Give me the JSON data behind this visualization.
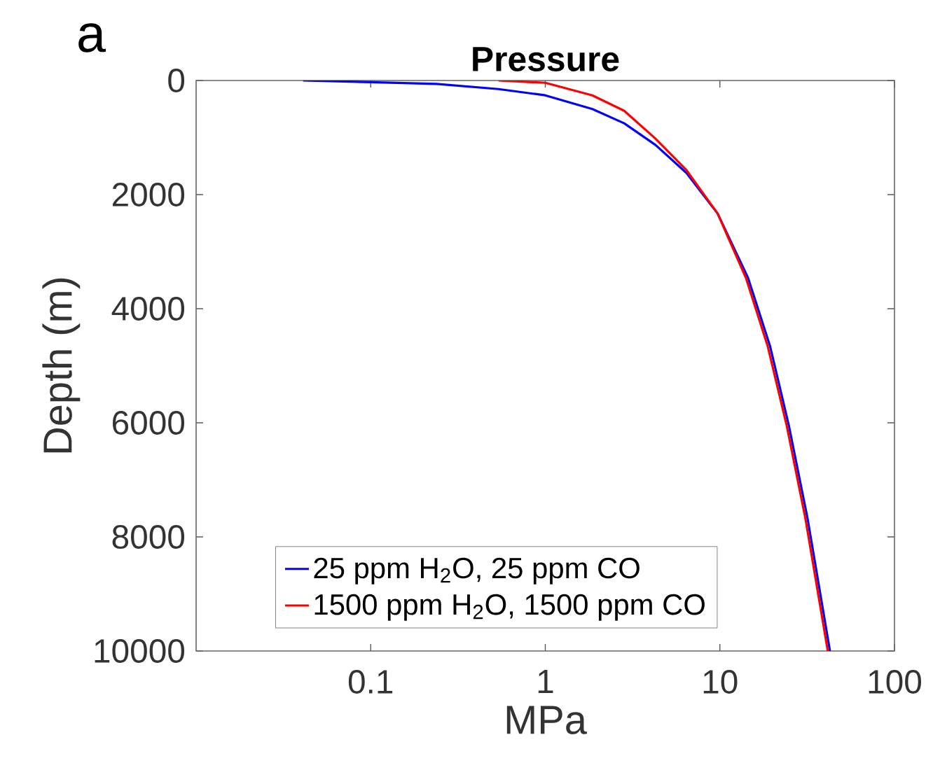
{
  "chart_data": {
    "type": "line",
    "title": "Pressure",
    "xlabel": "MPa",
    "ylabel": "Depth (m)",
    "annotations": [
      "a"
    ],
    "log": "x",
    "xlim": [
      0.01,
      100
    ],
    "xticks": [
      0.1,
      1,
      10,
      100
    ],
    "ylim": [
      10000,
      0
    ],
    "yticks": [
      0,
      2000,
      4000,
      6000,
      8000,
      10000
    ],
    "legend": "bottom",
    "grid": false,
    "line_style": "solid",
    "marker": "none",
    "series": [
      {
        "name": "25 ppm H$_{2}$O, 25 ppm CO",
        "color": "#0000ff",
        "x": [
          0.041,
          0.1,
          0.238,
          0.54,
          1.0,
          1.86,
          2.83,
          4.28,
          6.43,
          9.7,
          14.5,
          19.4,
          24.8,
          31.8,
          42.7
        ],
        "values": [
          0,
          30,
          60,
          150,
          260,
          500,
          750,
          1130,
          1620,
          2330,
          3460,
          4660,
          6040,
          7680,
          10000
        ]
      },
      {
        "name": "1500 ppm H$_{2}$O, 1500 ppm CO",
        "color": "#ff0000",
        "x": [
          0.54,
          1.0,
          1.86,
          2.83,
          4.28,
          6.43,
          9.7,
          14.1,
          18.8,
          24.1,
          30.9,
          41.5
        ],
        "values": [
          0,
          40,
          260,
          530,
          1020,
          1570,
          2330,
          3460,
          4660,
          6040,
          7680,
          10000
        ]
      }
    ]
  }
}
